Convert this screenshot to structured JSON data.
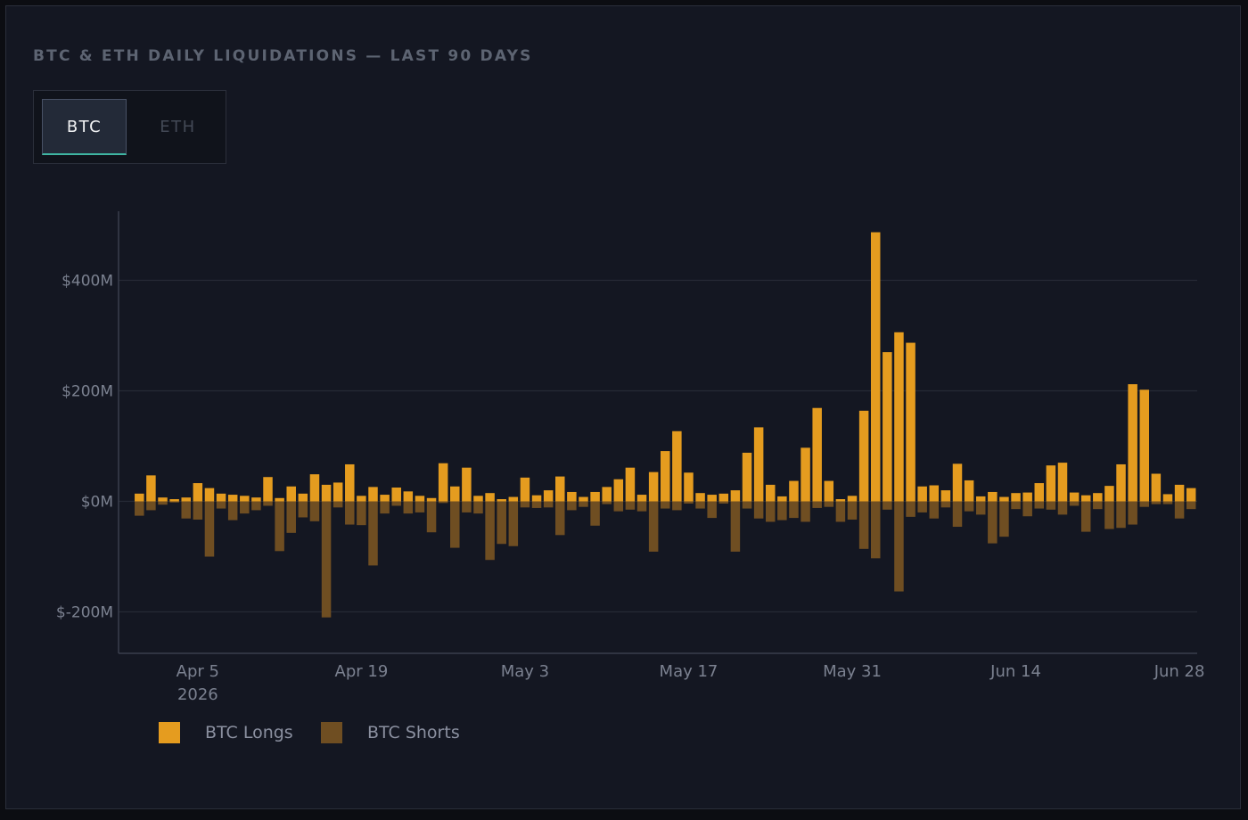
{
  "title": "BTC & ETH DAILY LIQUIDATIONS — LAST 90 DAYS",
  "tabs": [
    {
      "label": "BTC",
      "selected": true
    },
    {
      "label": "ETH",
      "selected": false
    }
  ],
  "colors": {
    "longs": "#e59c1f",
    "shorts": "#6f4e22",
    "grid": "#262a36",
    "axis": "#3a3f4c",
    "accent": "#3fb6a3"
  },
  "chart_data": {
    "type": "bar",
    "title": "",
    "xlabel": "",
    "ylabel": "",
    "ylim": [
      -275,
      525
    ],
    "y_ticks": [
      {
        "value": 400,
        "label": "$400M"
      },
      {
        "value": 200,
        "label": "$200M"
      },
      {
        "value": 0,
        "label": "$0M"
      },
      {
        "value": -200,
        "label": "$-200M"
      }
    ],
    "x_tick_labels": [
      {
        "day": 5,
        "label": "Apr 5",
        "sub": "2026"
      },
      {
        "day": 19,
        "label": "Apr 19",
        "sub": ""
      },
      {
        "day": 33,
        "label": "May 3",
        "sub": ""
      },
      {
        "day": 47,
        "label": "May 17",
        "sub": ""
      },
      {
        "day": 61,
        "label": "May 31",
        "sub": ""
      },
      {
        "day": 75,
        "label": "Jun 14",
        "sub": ""
      },
      {
        "day": 89,
        "label": "Jun 28",
        "sub": ""
      }
    ],
    "grid": true,
    "legend_position": "bottom-left",
    "series": [
      {
        "name": "BTC Longs",
        "values": [
          14,
          47,
          7,
          4,
          7,
          33,
          24,
          14,
          12,
          10,
          7,
          44,
          6,
          27,
          14,
          49,
          30,
          34,
          67,
          10,
          26,
          12,
          25,
          18,
          10,
          6,
          69,
          27,
          61,
          10,
          15,
          4,
          8,
          43,
          11,
          20,
          45,
          17,
          8,
          17,
          26,
          40,
          61,
          12,
          53,
          91,
          127,
          52,
          15,
          12,
          14,
          20,
          88,
          134,
          30,
          9,
          37,
          97,
          169,
          37,
          4,
          10,
          164,
          487,
          270,
          306,
          287,
          27,
          29,
          20,
          68,
          38,
          9,
          17,
          8,
          15,
          16,
          33,
          65,
          70,
          16,
          11,
          15,
          28,
          67,
          212,
          202,
          50,
          13,
          30,
          24
        ]
      },
      {
        "name": "BTC Shorts",
        "values": [
          -26,
          -16,
          -6,
          -2,
          -31,
          -33,
          -100,
          -13,
          -34,
          -22,
          -16,
          -8,
          -90,
          -57,
          -29,
          -36,
          -210,
          -11,
          -42,
          -43,
          -116,
          -22,
          -8,
          -22,
          -20,
          -56,
          -3,
          -84,
          -20,
          -22,
          -106,
          -77,
          -81,
          -11,
          -12,
          -11,
          -61,
          -16,
          -10,
          -44,
          -5,
          -18,
          -15,
          -18,
          -91,
          -13,
          -16,
          -4,
          -13,
          -30,
          -4,
          -91,
          -13,
          -31,
          -37,
          -34,
          -30,
          -37,
          -12,
          -10,
          -37,
          -33,
          -86,
          -103,
          -15,
          -163,
          -28,
          -20,
          -31,
          -11,
          -46,
          -18,
          -24,
          -76,
          -64,
          -14,
          -27,
          -13,
          -15,
          -24,
          -8,
          -55,
          -14,
          -50,
          -48,
          -42,
          -10,
          -5,
          -5,
          -31,
          -14
        ]
      }
    ]
  },
  "legend": [
    {
      "label": "BTC Longs"
    },
    {
      "label": "BTC Shorts"
    }
  ]
}
